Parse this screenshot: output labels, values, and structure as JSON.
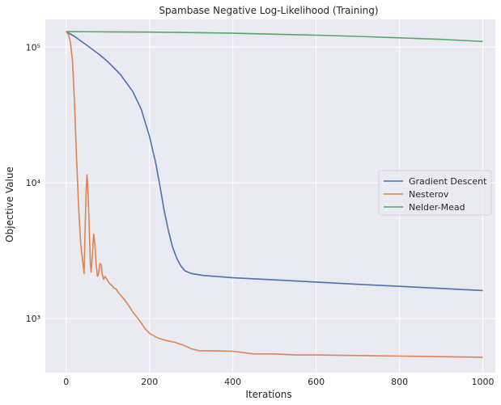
{
  "chart_data": {
    "type": "line",
    "title": "Spambase Negative Log-Likelihood (Training)",
    "xlabel": "Iterations",
    "ylabel": "Objective Value",
    "xlim": [
      -50,
      1030
    ],
    "ylim": [
      400,
      160000
    ],
    "yscale": "log",
    "grid": true,
    "legend_position": "center-right",
    "x_ticks": [
      0,
      200,
      400,
      600,
      800,
      1000
    ],
    "x_tick_labels": [
      "0",
      "200",
      "400",
      "600",
      "800",
      "1000"
    ],
    "y_ticks": [
      1000,
      10000,
      100000
    ],
    "y_tick_labels": [
      "10³",
      "10⁴",
      "10⁵"
    ],
    "colors": {
      "background": "#eaeaf2",
      "grid": "#ffffff",
      "gradient_descent": "#4c72b0",
      "nesterov": "#dd8452",
      "nelder_mead": "#55a868"
    },
    "series": [
      {
        "name": "Gradient Descent",
        "color": "#4c72b0",
        "x": [
          0,
          20,
          50,
          80,
          100,
          130,
          160,
          180,
          200,
          215,
          225,
          235,
          245,
          255,
          265,
          275,
          285,
          300,
          330,
          400,
          500,
          600,
          700,
          800,
          900,
          1000
        ],
        "y": [
          130000,
          120000,
          103000,
          88000,
          78000,
          63000,
          47000,
          35000,
          22000,
          14000,
          9500,
          6300,
          4500,
          3400,
          2800,
          2450,
          2250,
          2150,
          2080,
          2000,
          1930,
          1860,
          1790,
          1730,
          1670,
          1610
        ]
      },
      {
        "name": "Nesterov",
        "color": "#dd8452",
        "x": [
          0,
          5,
          10,
          15,
          20,
          25,
          30,
          35,
          40,
          43,
          45,
          48,
          50,
          53,
          56,
          58,
          60,
          63,
          66,
          69,
          72,
          75,
          78,
          81,
          84,
          87,
          90,
          93,
          96,
          100,
          105,
          110,
          115,
          120,
          125,
          130,
          140,
          150,
          160,
          170,
          180,
          190,
          200,
          220,
          240,
          260,
          280,
          300,
          320,
          350,
          400,
          450,
          500,
          550,
          600,
          700,
          800,
          900,
          1000
        ],
        "y": [
          130000,
          125000,
          110000,
          80000,
          40000,
          15000,
          6500,
          3500,
          2600,
          2150,
          4000,
          9000,
          11500,
          8000,
          4000,
          2600,
          2200,
          3000,
          4200,
          3500,
          2500,
          2050,
          2150,
          2550,
          2500,
          2100,
          1950,
          2050,
          1980,
          1900,
          1800,
          1750,
          1680,
          1650,
          1560,
          1500,
          1380,
          1250,
          1120,
          1020,
          930,
          840,
          780,
          720,
          690,
          670,
          640,
          600,
          580,
          580,
          575,
          550,
          550,
          540,
          540,
          535,
          530,
          525,
          520
        ]
      },
      {
        "name": "Nelder-Mead",
        "color": "#55a868",
        "x": [
          0,
          100,
          200,
          300,
          400,
          500,
          600,
          700,
          800,
          900,
          950,
          1000
        ],
        "y": [
          130000,
          129500,
          129000,
          128000,
          126500,
          124500,
          122500,
          120000,
          117000,
          114000,
          112000,
          110000
        ]
      }
    ]
  }
}
